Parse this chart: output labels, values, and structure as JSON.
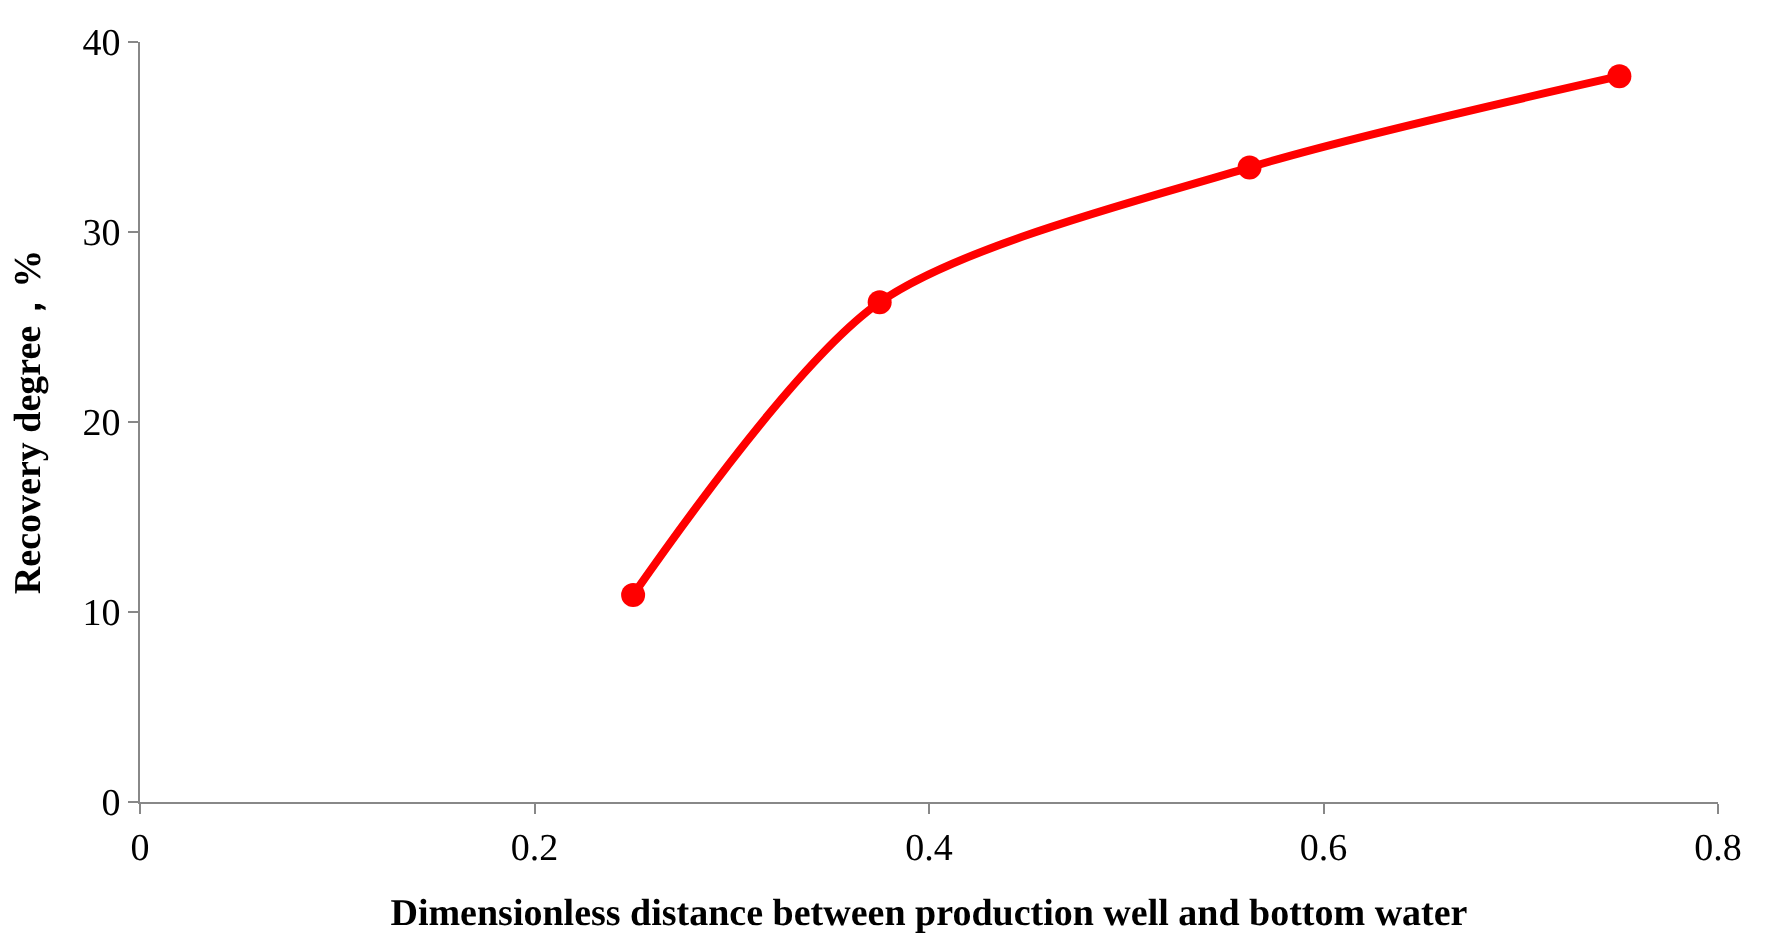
{
  "chart_data": {
    "type": "line",
    "xlabel": "Dimensionless distance between production well and bottom water",
    "ylabel": "Recovery degree，%",
    "x": [
      0.25,
      0.375,
      0.5625,
      0.75
    ],
    "series": [
      {
        "color": "#ff0000",
        "values": [
          10.9,
          26.3,
          33.4,
          38.2
        ]
      }
    ],
    "xlim": [
      0,
      0.8
    ],
    "xticks": [
      0,
      0.2,
      0.4,
      0.6,
      0.8
    ],
    "ylim": [
      0,
      40
    ],
    "yticks": [
      0,
      10,
      20,
      30,
      40
    ],
    "marker": "circle",
    "line_style": "solid"
  }
}
